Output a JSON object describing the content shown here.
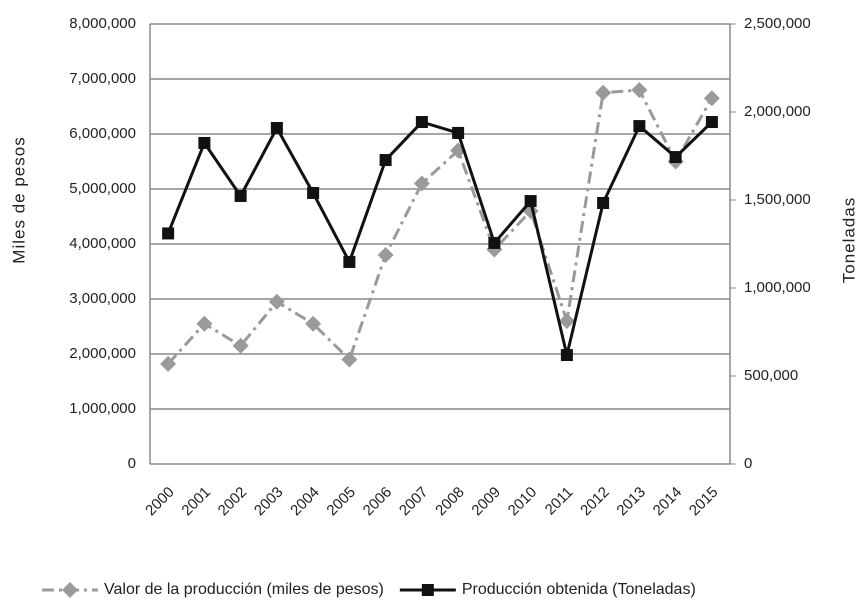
{
  "chart_data": {
    "type": "line",
    "categories": [
      "2000",
      "2001",
      "2002",
      "2003",
      "2004",
      "2005",
      "2006",
      "2007",
      "2008",
      "2009",
      "2010",
      "2011",
      "2012",
      "2013",
      "2014",
      "2015"
    ],
    "ylabel": "Miles de pesos",
    "y2label": "Toneladas",
    "ylim": [
      0,
      8000000
    ],
    "yticks": [
      0,
      {
        "value": 1000000,
        "label": "1,000,000"
      },
      {
        "value": 2000000,
        "label": "2,000,000"
      },
      {
        "value": 3000000,
        "label": "3,000,000"
      },
      {
        "value": 4000000,
        "label": "4,000,000"
      },
      {
        "value": 5000000,
        "label": "5,000,000"
      },
      {
        "value": 6000000,
        "label": "6,000,000"
      },
      {
        "value": 7000000,
        "label": "7,000,000"
      },
      {
        "value": 8000000,
        "label": "8,000,000"
      }
    ],
    "y2lim": [
      0,
      2500000
    ],
    "y2ticks": [
      0,
      {
        "value": 500000,
        "label": "500,000"
      },
      {
        "value": 1000000,
        "label": "1,000,000"
      },
      {
        "value": 1500000,
        "label": "1,500,000"
      },
      {
        "value": 2000000,
        "label": "2,000,000"
      },
      {
        "value": 2500000,
        "label": "2,500,000"
      }
    ],
    "grid": true,
    "legend": "bottom",
    "series": [
      {
        "name": "Valor de la producción (miles de pesos)",
        "color": "#9a9a9a",
        "axis": "y",
        "values": [
          1820000,
          2550000,
          2150000,
          2950000,
          2550000,
          1900000,
          3800000,
          5100000,
          5700000,
          3900000,
          4600000,
          2600000,
          6750000,
          6800000,
          5500000,
          6650000
        ]
      },
      {
        "name": "Producción obtenida (Toneladas)",
        "color": "#111111",
        "axis": "y2",
        "values": [
          1310000,
          1824000,
          1523000,
          1909000,
          1540000,
          1148000,
          1727000,
          1943000,
          1881000,
          1256000,
          1494000,
          619000,
          1483000,
          1920000,
          1744000,
          1943000
        ]
      }
    ]
  }
}
